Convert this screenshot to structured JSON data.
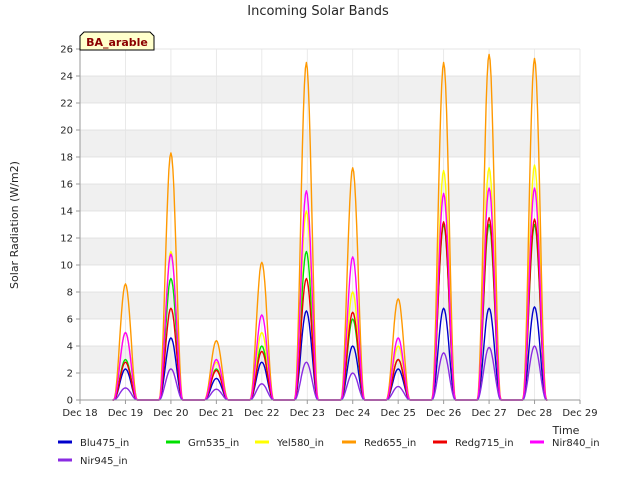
{
  "chart_data": {
    "type": "line",
    "title": "Incoming Solar Bands",
    "xlabel": "Time",
    "ylabel": "Solar Radiation (W/m2)",
    "site_label": "BA_arable",
    "ylim": [
      0,
      26
    ],
    "yticks": [
      0,
      2,
      4,
      6,
      8,
      10,
      12,
      14,
      16,
      18,
      20,
      22,
      24,
      26
    ],
    "xlim": [
      "Dec 18",
      "Dec 29"
    ],
    "xticks": [
      "Dec 18",
      "Dec 19",
      "Dec 20",
      "Dec 21",
      "Dec 22",
      "Dec 23",
      "Dec 24",
      "Dec 25",
      "Dec 26",
      "Dec 27",
      "Dec 28",
      "Dec 29"
    ],
    "grid": true,
    "background_bands": true,
    "legend_position": "bottom",
    "series": [
      {
        "name": "Blu475_in",
        "color": "#0000cc",
        "peaks": [
          [
            19.0,
            2.3
          ],
          [
            20.0,
            4.6
          ],
          [
            21.0,
            1.6
          ],
          [
            22.0,
            2.8
          ],
          [
            22.98,
            6.6
          ],
          [
            24.0,
            4.0
          ],
          [
            25.0,
            2.3
          ],
          [
            26.0,
            6.8
          ],
          [
            27.0,
            6.8
          ],
          [
            28.0,
            6.9
          ]
        ]
      },
      {
        "name": "Grn535_in",
        "color": "#00e000",
        "peaks": [
          [
            19.0,
            3.0
          ],
          [
            20.0,
            9.0
          ],
          [
            21.0,
            2.3
          ],
          [
            22.0,
            4.0
          ],
          [
            22.98,
            11.0
          ],
          [
            24.0,
            6.0
          ],
          [
            25.0,
            3.0
          ],
          [
            26.0,
            13.0
          ],
          [
            27.0,
            13.0
          ],
          [
            28.0,
            13.0
          ]
        ]
      },
      {
        "name": "Yel580_in",
        "color": "#ffff00",
        "peaks": [
          [
            19.0,
            5.0
          ],
          [
            20.0,
            11.0
          ],
          [
            21.0,
            2.8
          ],
          [
            22.0,
            5.0
          ],
          [
            22.98,
            14.0
          ],
          [
            24.0,
            8.0
          ],
          [
            25.0,
            4.0
          ],
          [
            26.0,
            17.0
          ],
          [
            27.0,
            17.2
          ],
          [
            28.0,
            17.4
          ]
        ]
      },
      {
        "name": "Red655_in",
        "color": "#ff9900",
        "peaks": [
          [
            19.0,
            8.6
          ],
          [
            20.0,
            18.3
          ],
          [
            21.0,
            4.4
          ],
          [
            22.0,
            10.2
          ],
          [
            22.98,
            25.0
          ],
          [
            24.0,
            17.2
          ],
          [
            25.0,
            7.5
          ],
          [
            26.0,
            25.0
          ],
          [
            27.0,
            25.6
          ],
          [
            28.0,
            25.3
          ]
        ]
      },
      {
        "name": "Redg715_in",
        "color": "#ee0000",
        "peaks": [
          [
            19.0,
            2.8
          ],
          [
            20.0,
            6.8
          ],
          [
            21.0,
            2.2
          ],
          [
            22.0,
            3.6
          ],
          [
            22.98,
            9.0
          ],
          [
            24.0,
            6.5
          ],
          [
            25.0,
            3.0
          ],
          [
            26.0,
            13.2
          ],
          [
            27.0,
            13.5
          ],
          [
            28.0,
            13.4
          ]
        ]
      },
      {
        "name": "Nir840_in",
        "color": "#ff00ff",
        "peaks": [
          [
            19.0,
            5.0
          ],
          [
            20.0,
            10.8
          ],
          [
            21.0,
            3.0
          ],
          [
            22.0,
            6.3
          ],
          [
            22.98,
            15.5
          ],
          [
            24.0,
            10.6
          ],
          [
            25.0,
            4.6
          ],
          [
            26.0,
            15.3
          ],
          [
            27.0,
            15.7
          ],
          [
            28.0,
            15.7
          ]
        ]
      },
      {
        "name": "Nir945_in",
        "color": "#8a2be2",
        "peaks": [
          [
            19.0,
            0.9
          ],
          [
            20.0,
            2.3
          ],
          [
            21.0,
            0.8
          ],
          [
            22.0,
            1.2
          ],
          [
            22.98,
            2.8
          ],
          [
            24.0,
            2.0
          ],
          [
            25.0,
            1.0
          ],
          [
            26.0,
            3.5
          ],
          [
            27.0,
            3.9
          ],
          [
            28.0,
            4.0
          ]
        ]
      }
    ]
  }
}
